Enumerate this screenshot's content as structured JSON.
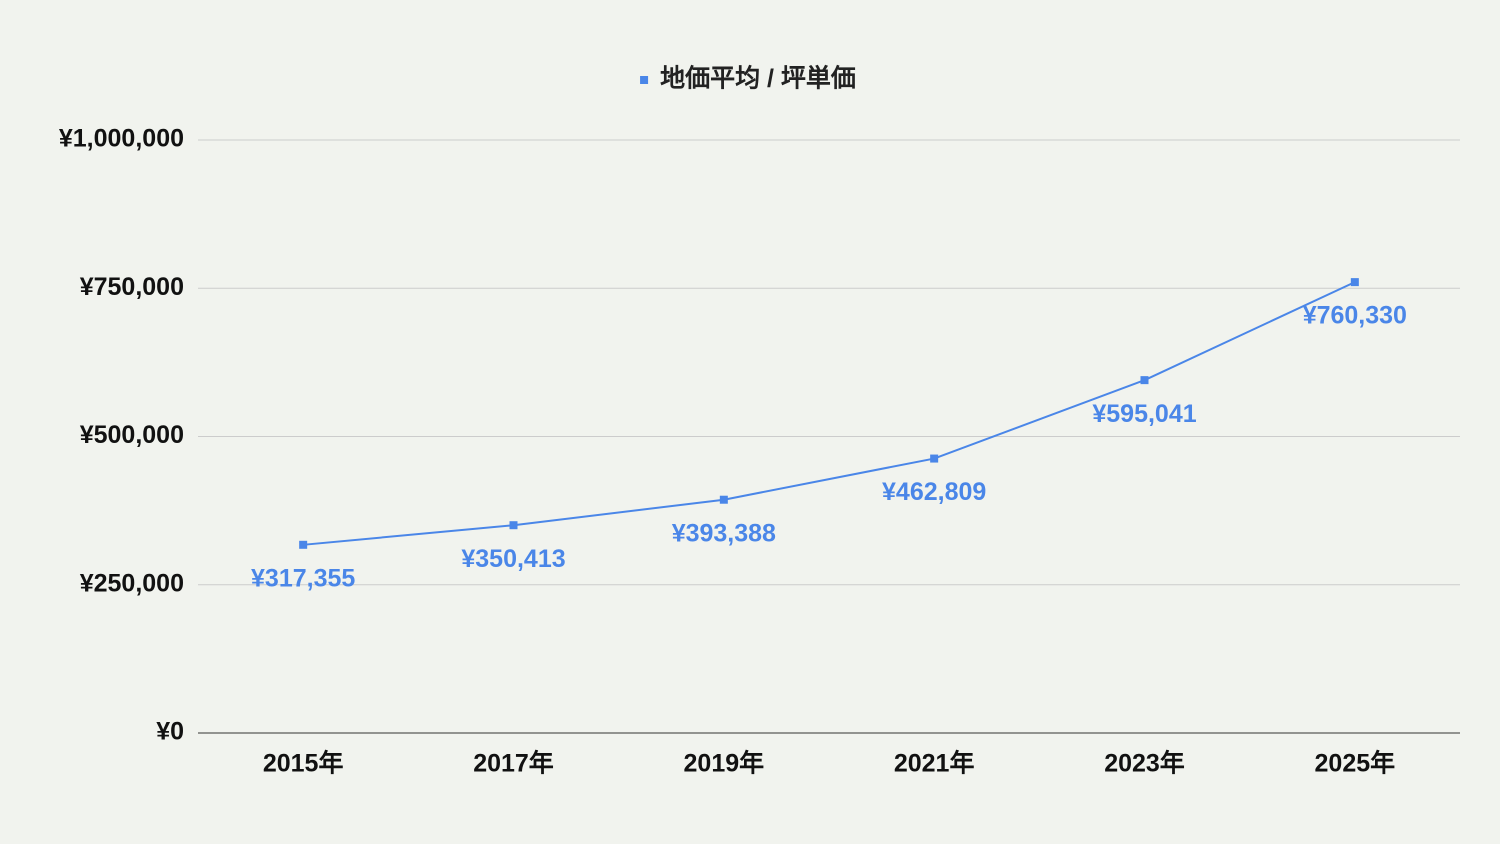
{
  "chart_data": {
    "type": "line",
    "categories": [
      "2015年",
      "2017年",
      "2019年",
      "2021年",
      "2023年",
      "2025年"
    ],
    "series": [
      {
        "name": "地価平均 / 坪単価",
        "color": "#4a86e8",
        "values": [
          317355,
          350413,
          393388,
          462809,
          595041,
          760330
        ],
        "value_labels": [
          "¥317,355",
          "¥350,413",
          "¥393,388",
          "¥462,809",
          "¥595,041",
          "¥760,330"
        ]
      }
    ],
    "ylim": [
      0,
      1000000
    ],
    "yticks": [
      {
        "value": 0,
        "label": "¥0"
      },
      {
        "value": 250000,
        "label": "¥250,000"
      },
      {
        "value": 500000,
        "label": "¥500,000"
      },
      {
        "value": 750000,
        "label": "¥750,000"
      },
      {
        "value": 1000000,
        "label": "¥1,000,000"
      }
    ],
    "grid": true,
    "legend": "top"
  }
}
